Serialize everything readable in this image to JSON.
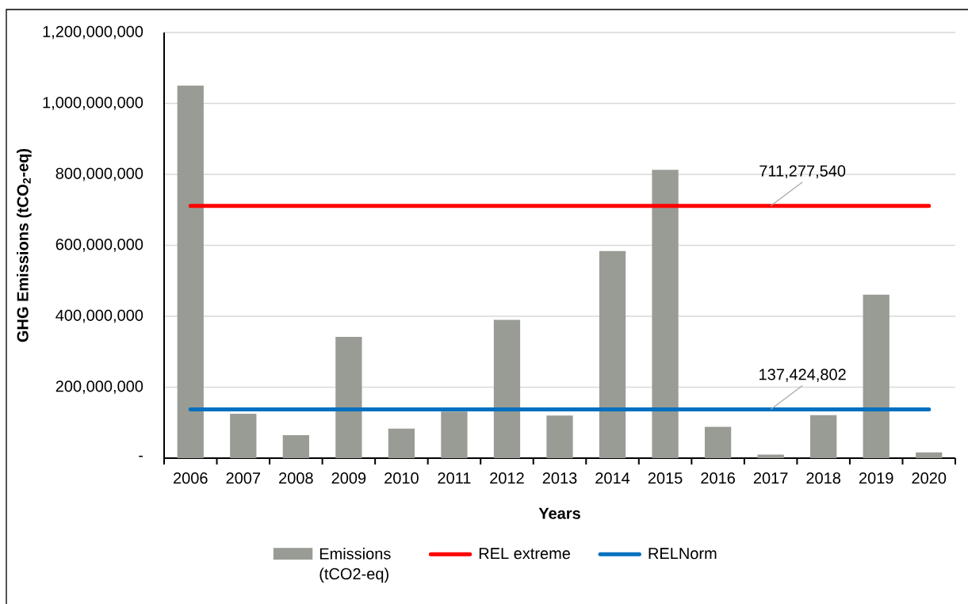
{
  "chart_data": {
    "type": "bar",
    "categories": [
      "2006",
      "2007",
      "2008",
      "2009",
      "2010",
      "2011",
      "2012",
      "2013",
      "2014",
      "2015",
      "2016",
      "2017",
      "2018",
      "2019",
      "2020"
    ],
    "series": [
      {
        "name": "Emissions (tCO2-eq)",
        "color": "#989c95",
        "values": [
          1050000000,
          125000000,
          65000000,
          342000000,
          83000000,
          131000000,
          390000000,
          120000000,
          584000000,
          813000000,
          88000000,
          10000000,
          121000000,
          461000000,
          16000000
        ]
      },
      {
        "name": "REL extreme",
        "type": "line",
        "color": "#ff0000",
        "values": [
          711277540,
          711277540,
          711277540,
          711277540,
          711277540,
          711277540,
          711277540,
          711277540,
          711277540,
          711277540,
          711277540,
          711277540,
          711277540,
          711277540,
          711277540
        ],
        "value_labels": [
          null,
          null,
          null,
          null,
          null,
          null,
          null,
          null,
          null,
          null,
          null,
          "711,277,540",
          null,
          null,
          null
        ]
      },
      {
        "name": "RELNorm",
        "type": "line",
        "color": "#0070c0",
        "values": [
          137424802,
          137424802,
          137424802,
          137424802,
          137424802,
          137424802,
          137424802,
          137424802,
          137424802,
          137424802,
          137424802,
          137424802,
          137424802,
          137424802,
          137424802
        ],
        "value_labels": [
          null,
          null,
          null,
          null,
          null,
          null,
          null,
          null,
          null,
          null,
          null,
          "137,424,802",
          null,
          null,
          null
        ]
      }
    ],
    "xlabel": "Years",
    "ylabel": "GHG Emissions (tCO$_{2}$-eq)",
    "ylim": [
      0,
      1200000000
    ],
    "yticks": [
      {
        "value": 0,
        "label": "-"
      },
      {
        "value": 200000000,
        "label": "200,000,000"
      },
      {
        "value": 400000000,
        "label": "400,000,000"
      },
      {
        "value": 600000000,
        "label": "600,000,000"
      },
      {
        "value": 800000000,
        "label": "800,000,000"
      },
      {
        "value": 1000000000,
        "label": "1,000,000,000"
      },
      {
        "value": 1200000000,
        "label": "1,200,000,000"
      }
    ],
    "grid": "y",
    "legend": "bottom"
  }
}
